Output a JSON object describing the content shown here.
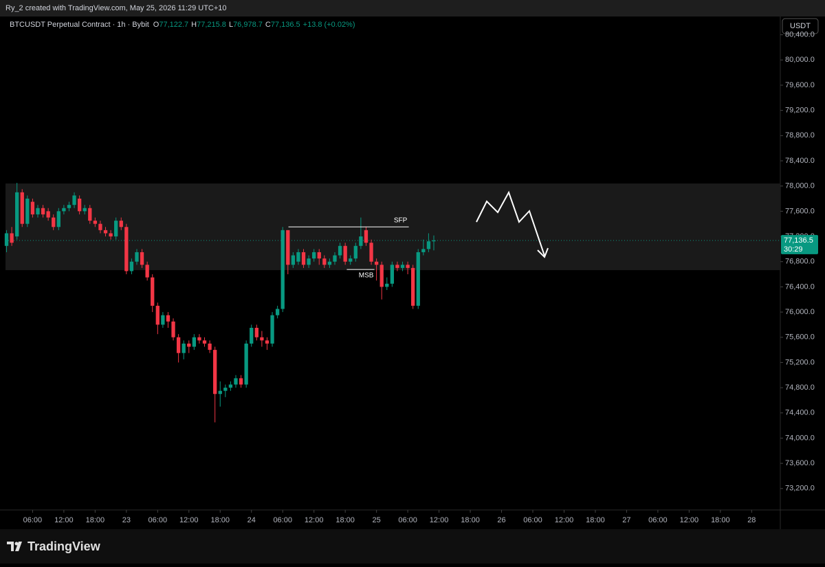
{
  "header": {
    "credit": "Ry_2 created with TradingView.com, May 25, 2026 11:29 UTC+10",
    "logo": "TradingView"
  },
  "chart_data": {
    "type": "candlestick",
    "title": "BTCUSDT Perpetual Contract · 1h · Bybit",
    "ohlc_legend": [
      {
        "key": "O",
        "value": "77,122.7"
      },
      {
        "key": "H",
        "value": "77,215.8"
      },
      {
        "key": "L",
        "value": "76,978.7"
      },
      {
        "key": "C",
        "value": "77,136.5"
      }
    ],
    "change": "+13.8 (+0.02%)",
    "currency": "USDT",
    "up_color": "#089981",
    "down_color": "#f23645",
    "x": [
      -23,
      -22,
      -21,
      -20,
      -19,
      -18,
      -17,
      -16,
      -15,
      -14,
      -13,
      -12,
      -11,
      -10,
      -9,
      -8,
      -7,
      -6,
      -5,
      -4,
      -3,
      -2,
      -1,
      0,
      1,
      2,
      3,
      4,
      5,
      6,
      7,
      8,
      9,
      10,
      11,
      12,
      13,
      14,
      15,
      16,
      17,
      18,
      19,
      20,
      21,
      22,
      23,
      24,
      25,
      26,
      27,
      28,
      29,
      30,
      31,
      32,
      33,
      34,
      35,
      36,
      37,
      38,
      39,
      40,
      41,
      42,
      43,
      44,
      45,
      46,
      47,
      48,
      49,
      50,
      51,
      52,
      53,
      54,
      55,
      56,
      57,
      58,
      59
    ],
    "open": [
      77050,
      77250,
      77200,
      77900,
      77400,
      77750,
      77550,
      77650,
      77600,
      77500,
      77350,
      77600,
      77650,
      77700,
      77800,
      77600,
      77650,
      77450,
      77400,
      77300,
      77250,
      77200,
      77450,
      77350,
      76650,
      76800,
      76950,
      76750,
      76550,
      76100,
      75800,
      75950,
      75850,
      75600,
      75350,
      75500,
      75450,
      75600,
      75550,
      75500,
      75400,
      74700,
      74750,
      74800,
      74850,
      74950,
      74850,
      75500,
      75750,
      75600,
      75550,
      75500,
      75950,
      76050,
      77300,
      76750,
      76800,
      76950,
      76750,
      76850,
      76950,
      76850,
      76750,
      76800,
      76900,
      77050,
      76800,
      76850,
      77050,
      77300,
      77100,
      76800,
      76750,
      76400,
      76450,
      76750,
      76700,
      76750,
      76700,
      76100,
      76950,
      77000,
      77122.7
    ],
    "high": [
      77300,
      77350,
      78050,
      77950,
      77850,
      77800,
      77700,
      77700,
      77650,
      77550,
      77650,
      77700,
      77750,
      77900,
      77850,
      77700,
      77700,
      77500,
      77450,
      77350,
      77300,
      77500,
      77500,
      77400,
      76850,
      77000,
      77000,
      76800,
      76600,
      76150,
      76000,
      76000,
      75900,
      75650,
      75550,
      75550,
      75650,
      75650,
      75600,
      75550,
      75450,
      74900,
      74850,
      74900,
      75000,
      75000,
      75550,
      75800,
      75800,
      75700,
      75600,
      76000,
      76100,
      77350,
      77300,
      76950,
      77000,
      77000,
      76900,
      77000,
      77000,
      76900,
      76850,
      76950,
      77100,
      77100,
      76900,
      77100,
      77500,
      77350,
      77150,
      76850,
      76800,
      76550,
      76800,
      76800,
      76800,
      76800,
      76750,
      77000,
      77150,
      77250,
      77215.8
    ],
    "low": [
      76950,
      77050,
      77150,
      77350,
      77350,
      77500,
      77500,
      77500,
      77450,
      77300,
      77300,
      77550,
      77600,
      77650,
      77550,
      77550,
      77400,
      77350,
      77250,
      77200,
      77150,
      77150,
      77300,
      76600,
      76600,
      76750,
      76700,
      76500,
      76000,
      75650,
      75750,
      75750,
      75550,
      75200,
      75250,
      75350,
      75400,
      75500,
      75450,
      75350,
      74250,
      74500,
      74650,
      74750,
      74800,
      74800,
      74800,
      75450,
      75550,
      75450,
      75400,
      75450,
      75900,
      76000,
      76600,
      76700,
      76750,
      76700,
      76700,
      76800,
      76750,
      76700,
      76700,
      76750,
      76850,
      76750,
      76750,
      76800,
      77000,
      77050,
      76750,
      76500,
      76200,
      76350,
      76400,
      76650,
      76650,
      76600,
      76050,
      76050,
      76900,
      76950,
      76978.7
    ],
    "close": [
      77250,
      77100,
      77900,
      77400,
      77800,
      77550,
      77650,
      77550,
      77500,
      77350,
      77600,
      77650,
      77700,
      77850,
      77600,
      77650,
      77450,
      77400,
      77300,
      77250,
      77200,
      77450,
      77350,
      76650,
      76800,
      76950,
      76750,
      76550,
      76100,
      75800,
      75950,
      75850,
      75600,
      75350,
      75500,
      75450,
      75600,
      75550,
      75500,
      75400,
      74700,
      74750,
      74800,
      74850,
      74950,
      74850,
      75500,
      75750,
      75600,
      75550,
      75500,
      75950,
      76050,
      77300,
      76750,
      76900,
      76950,
      76750,
      76850,
      76950,
      76850,
      76750,
      76800,
      76900,
      77050,
      76800,
      76850,
      77050,
      77200,
      77100,
      76800,
      76750,
      76400,
      76450,
      76750,
      76700,
      76750,
      76700,
      76100,
      76950,
      77000,
      77122.7,
      77136.5
    ],
    "xlim": [
      -23.2,
      125.5
    ],
    "xticks": [
      {
        "value": -18,
        "label": "06:00"
      },
      {
        "value": -12,
        "label": "12:00"
      },
      {
        "value": -6,
        "label": "18:00"
      },
      {
        "value": 0,
        "label": "23"
      },
      {
        "value": 6,
        "label": "06:00"
      },
      {
        "value": 12,
        "label": "12:00"
      },
      {
        "value": 18,
        "label": "18:00"
      },
      {
        "value": 24,
        "label": "24"
      },
      {
        "value": 30,
        "label": "06:00"
      },
      {
        "value": 36,
        "label": "12:00"
      },
      {
        "value": 42,
        "label": "18:00"
      },
      {
        "value": 48,
        "label": "25"
      },
      {
        "value": 54,
        "label": "06:00"
      },
      {
        "value": 60,
        "label": "12:00"
      },
      {
        "value": 66,
        "label": "18:00"
      },
      {
        "value": 72,
        "label": "26"
      },
      {
        "value": 78,
        "label": "06:00"
      },
      {
        "value": 84,
        "label": "12:00"
      },
      {
        "value": 90,
        "label": "18:00"
      },
      {
        "value": 96,
        "label": "27"
      },
      {
        "value": 102,
        "label": "06:00"
      },
      {
        "value": 108,
        "label": "12:00"
      },
      {
        "value": 114,
        "label": "18:00"
      },
      {
        "value": 120,
        "label": "28"
      }
    ],
    "ylim": [
      72860,
      80690
    ],
    "yticks": [
      {
        "value": 73200,
        "label": "73,200.0"
      },
      {
        "value": 73600,
        "label": "73,600.0"
      },
      {
        "value": 74000,
        "label": "74,000.0"
      },
      {
        "value": 74400,
        "label": "74,400.0"
      },
      {
        "value": 74800,
        "label": "74,800.0"
      },
      {
        "value": 75200,
        "label": "75,200.0"
      },
      {
        "value": 75600,
        "label": "75,600.0"
      },
      {
        "value": 76000,
        "label": "76,000.0"
      },
      {
        "value": 76400,
        "label": "76,400.0"
      },
      {
        "value": 76800,
        "label": "76,800.0"
      },
      {
        "value": 77200,
        "label": "77,200.0"
      },
      {
        "value": 77600,
        "label": "77,600.0"
      },
      {
        "value": 78000,
        "label": "78,000.0"
      },
      {
        "value": 78400,
        "label": "78,400.0"
      },
      {
        "value": 78800,
        "label": "78,800.0"
      },
      {
        "value": 79200,
        "label": "79,200.0"
      },
      {
        "value": 79600,
        "label": "79,600.0"
      },
      {
        "value": 80000,
        "label": "80,000.0"
      },
      {
        "value": 80400,
        "label": "80,400.0"
      }
    ],
    "zone": [
      76665,
      78040
    ],
    "annotations": [
      {
        "text": "SFP",
        "price": 77352,
        "x0": 31.1,
        "x1": 54.2
      },
      {
        "text": "MSB",
        "price": 76676,
        "x0": 42.3,
        "x1": 47.6
      }
    ],
    "last_price": {
      "value": 77136.5,
      "label": "77,136.5",
      "countdown": "30:29",
      "color": "#089981"
    }
  }
}
